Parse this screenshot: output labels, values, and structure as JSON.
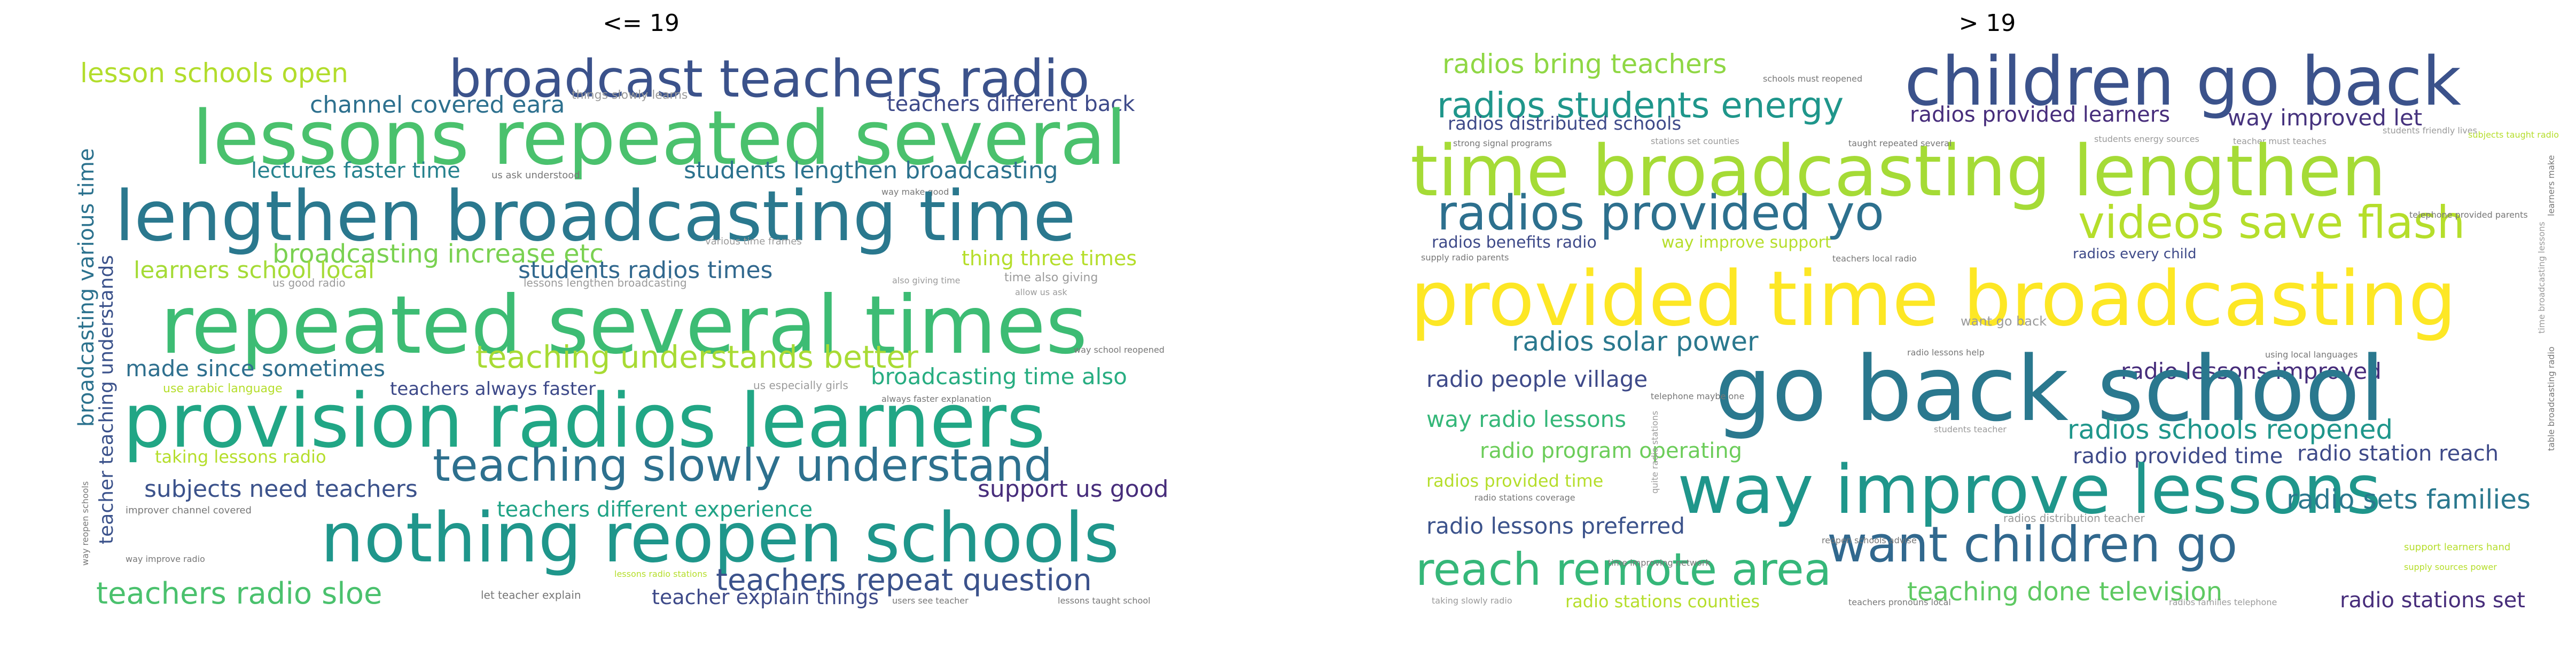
{
  "panels": [
    {
      "title": "<= 19",
      "words": [
        {
          "t": "lesson schools open",
          "c": "#b2dd2c"
        },
        {
          "t": "broadcast teachers radio",
          "c": "#3b528b"
        },
        {
          "t": "channel covered eara",
          "c": "#2d708e"
        },
        {
          "t": "things slowly learns",
          "c": "#9b9b9b"
        },
        {
          "t": "teachers different back",
          "c": "#3e4a89"
        },
        {
          "t": "lessons repeated several",
          "c": "#4ac16d"
        },
        {
          "t": "lectures faster time",
          "c": "#26828e"
        },
        {
          "t": "us ask understood",
          "c": "#777777"
        },
        {
          "t": "students lengthen broadcasting",
          "c": "#2c728e"
        },
        {
          "t": "way make good",
          "c": "#777777"
        },
        {
          "t": "lengthen broadcasting time",
          "c": "#2a788e"
        },
        {
          "t": "broadcasting increase etc",
          "c": "#7ad151"
        },
        {
          "t": "various time frames",
          "c": "#9b9b9b"
        },
        {
          "t": "learners school local",
          "c": "#a5db36"
        },
        {
          "t": "students radios times",
          "c": "#31688e"
        },
        {
          "t": "thing three times",
          "c": "#b5de2b"
        },
        {
          "t": "us good radio",
          "c": "#9b9b9b"
        },
        {
          "t": "lessons lengthen broadcasting",
          "c": "#9b9b9b"
        },
        {
          "t": "also giving time",
          "c": "#9b9b9b"
        },
        {
          "t": "time also giving",
          "c": "#9b9b9b"
        },
        {
          "t": "allow us ask",
          "c": "#9b9b9b"
        },
        {
          "t": "repeated several times",
          "c": "#3dbc74"
        },
        {
          "t": "teaching understands better",
          "c": "#a8db34"
        },
        {
          "t": "made since sometimes",
          "c": "#2e6f8e"
        },
        {
          "t": "broadcasting time also",
          "c": "#27ad81"
        },
        {
          "t": "way school reopened",
          "c": "#777777"
        },
        {
          "t": "teachers always faster",
          "c": "#3e4a89"
        },
        {
          "t": "us especially girls",
          "c": "#9b9b9b"
        },
        {
          "t": "always faster explanation",
          "c": "#777777"
        },
        {
          "t": "use arabic language",
          "c": "#b5de2b"
        },
        {
          "t": "provision radios learners",
          "c": "#21a685"
        },
        {
          "t": "taking lessons radio",
          "c": "#b5de2b"
        },
        {
          "t": "teaching slowly understand",
          "c": "#2d708e"
        },
        {
          "t": "subjects need teachers",
          "c": "#3b528b"
        },
        {
          "t": "support us good",
          "c": "#472d7b"
        },
        {
          "t": "teachers different experience",
          "c": "#20a386"
        },
        {
          "t": "improver channel covered",
          "c": "#777777"
        },
        {
          "t": "nothing reopen schools",
          "c": "#1f968b"
        },
        {
          "t": "way improve radio",
          "c": "#777777"
        },
        {
          "t": "teachers repeat question",
          "c": "#3b528b"
        },
        {
          "t": "teachers radio sloe",
          "c": "#4ac16d"
        },
        {
          "t": "let teacher explain",
          "c": "#777777"
        },
        {
          "t": "lessons radio stations",
          "c": "#b5de2b"
        },
        {
          "t": "teacher explain things",
          "c": "#3e4a89"
        },
        {
          "t": "users see teacher",
          "c": "#777777"
        },
        {
          "t": "lessons taught school",
          "c": "#777777"
        },
        {
          "t": "broadcasting various time",
          "c": "#2c728e"
        },
        {
          "t": "teacher teaching understands",
          "c": "#3b528b"
        },
        {
          "t": "way reopen schools",
          "c": "#777777"
        }
      ]
    },
    {
      "title": "> 19",
      "words": [
        {
          "t": "radios bring teachers",
          "c": "#8fd744"
        },
        {
          "t": "schools must reopened",
          "c": "#777777"
        },
        {
          "t": "children go back",
          "c": "#3b528b"
        },
        {
          "t": "radios students energy",
          "c": "#1f968b"
        },
        {
          "t": "radios distributed schools",
          "c": "#3e4a89"
        },
        {
          "t": "radios provided learners",
          "c": "#472d7b"
        },
        {
          "t": "way improved let",
          "c": "#46337e"
        },
        {
          "t": "students friendly lives",
          "c": "#9b9b9b"
        },
        {
          "t": "students energy sources",
          "c": "#9b9b9b"
        },
        {
          "t": "teacher must teaches",
          "c": "#9b9b9b"
        },
        {
          "t": "subjects taught radio",
          "c": "#b5de2b"
        },
        {
          "t": "time broadcasting lengthen",
          "c": "#a5db36"
        },
        {
          "t": "strong signal programs",
          "c": "#777777"
        },
        {
          "t": "stations set counties",
          "c": "#9b9b9b"
        },
        {
          "t": "taught repeated several",
          "c": "#777777"
        },
        {
          "t": "radios provided yo",
          "c": "#2d708e"
        },
        {
          "t": "videos save flash",
          "c": "#b5de2b"
        },
        {
          "t": "telephone provided parents",
          "c": "#777777"
        },
        {
          "t": "radios benefits radio",
          "c": "#3e4a89"
        },
        {
          "t": "way improve support",
          "c": "#b5de2b"
        },
        {
          "t": "supply radio parents",
          "c": "#777777"
        },
        {
          "t": "teachers local radio",
          "c": "#777777"
        },
        {
          "t": "radios every child",
          "c": "#3e4a89"
        },
        {
          "t": "provided time broadcasting",
          "c": "#fde725"
        },
        {
          "t": "radios solar power",
          "c": "#2a788e"
        },
        {
          "t": "want go back",
          "c": "#9b9b9b"
        },
        {
          "t": "radio lessons improved",
          "c": "#472d7b"
        },
        {
          "t": "radio lessons help",
          "c": "#777777"
        },
        {
          "t": "using local languages",
          "c": "#777777"
        },
        {
          "t": "radio people village",
          "c": "#3e4a89"
        },
        {
          "t": "go back school",
          "c": "#2a788e"
        },
        {
          "t": "telephone maybe one",
          "c": "#777777"
        },
        {
          "t": "way radio lessons",
          "c": "#35b779"
        },
        {
          "t": "radio program operating",
          "c": "#6ccd5a"
        },
        {
          "t": "radios schools reopened",
          "c": "#1f968b"
        },
        {
          "t": "radio station reach",
          "c": "#3e4a89"
        },
        {
          "t": "students teacher",
          "c": "#9b9b9b"
        },
        {
          "t": "radio provided time",
          "c": "#3e4a89"
        },
        {
          "t": "radios provided time",
          "c": "#b5de2b"
        },
        {
          "t": "radio stations coverage",
          "c": "#777777"
        },
        {
          "t": "way improve lessons",
          "c": "#1f968b"
        },
        {
          "t": "radio sets families",
          "c": "#2a788e"
        },
        {
          "t": "radio lessons preferred",
          "c": "#3b528b"
        },
        {
          "t": "radios distribution teacher",
          "c": "#9b9b9b"
        },
        {
          "t": "want children go",
          "c": "#31688e"
        },
        {
          "t": "reopen schools advise",
          "c": "#777777"
        },
        {
          "t": "reach remote area",
          "c": "#35b779"
        },
        {
          "t": "support learners hand",
          "c": "#b5de2b"
        },
        {
          "t": "supply sources power",
          "c": "#b5de2b"
        },
        {
          "t": "time improving network",
          "c": "#777777"
        },
        {
          "t": "teaching done television",
          "c": "#5ec962"
        },
        {
          "t": "taking slowly radio",
          "c": "#9b9b9b"
        },
        {
          "t": "radio stations counties",
          "c": "#b5de2b"
        },
        {
          "t": "teachers pronouns local",
          "c": "#777777"
        },
        {
          "t": "radios families telephone",
          "c": "#9b9b9b"
        },
        {
          "t": "radio stations set",
          "c": "#472d7b"
        },
        {
          "t": "table broadcasting radio",
          "c": "#777777"
        },
        {
          "t": "quite radio stations",
          "c": "#9b9b9b"
        },
        {
          "t": "learners make",
          "c": "#777777"
        },
        {
          "t": "time broadcasting lessons",
          "c": "#9b9b9b"
        }
      ]
    }
  ]
}
